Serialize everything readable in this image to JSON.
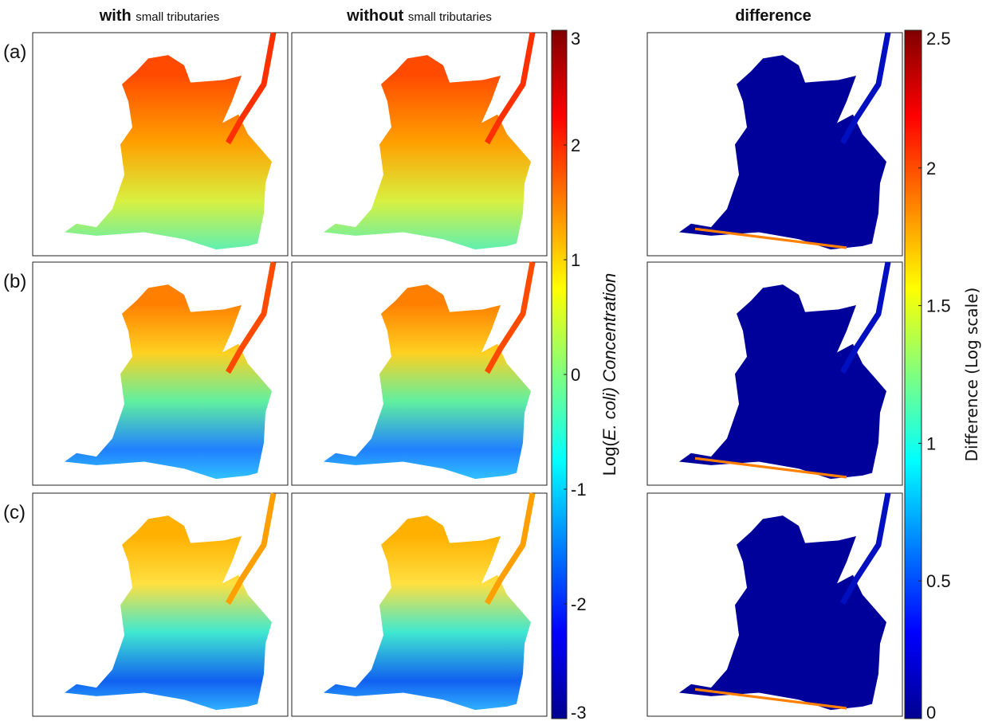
{
  "columns": [
    {
      "bold": "with",
      "small": "small tributaries"
    },
    {
      "bold": "without",
      "small": "small tributaries"
    },
    {
      "bold": "difference"
    }
  ],
  "rows": [
    "(a)",
    "(b)",
    "(c)"
  ],
  "colorbars": [
    {
      "label_prefix": "Log(",
      "label_italic": "E. coli",
      "label_suffix": ") Concentration",
      "ylim": [
        -3,
        3
      ],
      "yticks": [
        -3,
        -2,
        -1,
        0,
        1,
        2,
        3
      ]
    },
    {
      "label": "Difference (Log scale)",
      "ylim": [
        0,
        2.5
      ],
      "yticks": [
        0,
        0.5,
        1,
        1.5,
        2,
        2.5
      ]
    }
  ]
}
